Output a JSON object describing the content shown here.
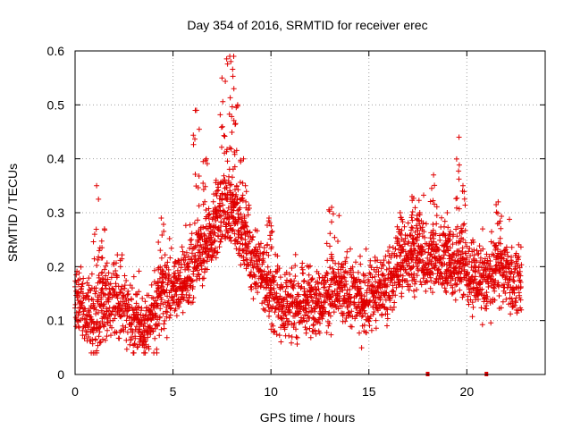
{
  "chart_data": {
    "type": "scatter",
    "title": "Day 354 of 2016, SRMTID for receiver erec",
    "xlabel": "GPS time / hours",
    "ylabel": "SRMTID / TECUs",
    "xlim": [
      0,
      24
    ],
    "ylim": [
      0,
      0.6
    ],
    "xticks": [
      0,
      5,
      10,
      15,
      20
    ],
    "xtick_labels": [
      "0",
      "5",
      "10",
      "15",
      "20"
    ],
    "yticks": [
      0,
      0.1,
      0.2,
      0.3,
      0.4,
      0.5,
      0.6
    ],
    "ytick_labels": [
      "0",
      "0.1",
      "0.2",
      "0.3",
      "0.4",
      "0.5",
      "0.6"
    ],
    "grid": true,
    "marker": "+",
    "color": "#e00000",
    "zero_points": [
      18.0,
      21.0
    ],
    "trend": [
      [
        0.0,
        0.15
      ],
      [
        0.5,
        0.12
      ],
      [
        1.0,
        0.1
      ],
      [
        1.5,
        0.13
      ],
      [
        2.0,
        0.13
      ],
      [
        2.5,
        0.12
      ],
      [
        3.0,
        0.1
      ],
      [
        3.5,
        0.09
      ],
      [
        4.0,
        0.11
      ],
      [
        4.5,
        0.15
      ],
      [
        5.0,
        0.16
      ],
      [
        5.5,
        0.17
      ],
      [
        6.0,
        0.2
      ],
      [
        6.5,
        0.22
      ],
      [
        7.0,
        0.25
      ],
      [
        7.5,
        0.3
      ],
      [
        8.0,
        0.3
      ],
      [
        8.5,
        0.27
      ],
      [
        9.0,
        0.22
      ],
      [
        9.5,
        0.19
      ],
      [
        10.0,
        0.15
      ],
      [
        10.5,
        0.13
      ],
      [
        11.0,
        0.13
      ],
      [
        11.5,
        0.13
      ],
      [
        12.0,
        0.14
      ],
      [
        12.5,
        0.14
      ],
      [
        13.0,
        0.15
      ],
      [
        13.5,
        0.16
      ],
      [
        14.0,
        0.15
      ],
      [
        14.5,
        0.14
      ],
      [
        15.0,
        0.14
      ],
      [
        15.5,
        0.15
      ],
      [
        16.0,
        0.17
      ],
      [
        16.5,
        0.2
      ],
      [
        17.0,
        0.22
      ],
      [
        17.5,
        0.22
      ],
      [
        18.0,
        0.21
      ],
      [
        18.5,
        0.21
      ],
      [
        19.0,
        0.21
      ],
      [
        19.5,
        0.2
      ],
      [
        20.0,
        0.19
      ],
      [
        20.5,
        0.18
      ],
      [
        21.0,
        0.17
      ],
      [
        21.5,
        0.19
      ],
      [
        22.0,
        0.19
      ],
      [
        22.5,
        0.17
      ],
      [
        22.8,
        0.16
      ]
    ],
    "peaks": [
      {
        "x": 1.1,
        "y": 0.35
      },
      {
        "x": 1.5,
        "y": 0.27
      },
      {
        "x": 4.4,
        "y": 0.29
      },
      {
        "x": 6.2,
        "y": 0.49
      },
      {
        "x": 6.7,
        "y": 0.4
      },
      {
        "x": 7.2,
        "y": 0.36
      },
      {
        "x": 7.5,
        "y": 0.55
      },
      {
        "x": 7.9,
        "y": 0.59
      },
      {
        "x": 8.1,
        "y": 0.59
      },
      {
        "x": 8.3,
        "y": 0.5
      },
      {
        "x": 8.6,
        "y": 0.4
      },
      {
        "x": 9.9,
        "y": 0.29
      },
      {
        "x": 13.1,
        "y": 0.31
      },
      {
        "x": 16.6,
        "y": 0.3
      },
      {
        "x": 17.2,
        "y": 0.33
      },
      {
        "x": 17.6,
        "y": 0.3
      },
      {
        "x": 18.3,
        "y": 0.37
      },
      {
        "x": 19.0,
        "y": 0.3
      },
      {
        "x": 19.6,
        "y": 0.44
      },
      {
        "x": 19.8,
        "y": 0.35
      },
      {
        "x": 21.6,
        "y": 0.32
      }
    ]
  }
}
